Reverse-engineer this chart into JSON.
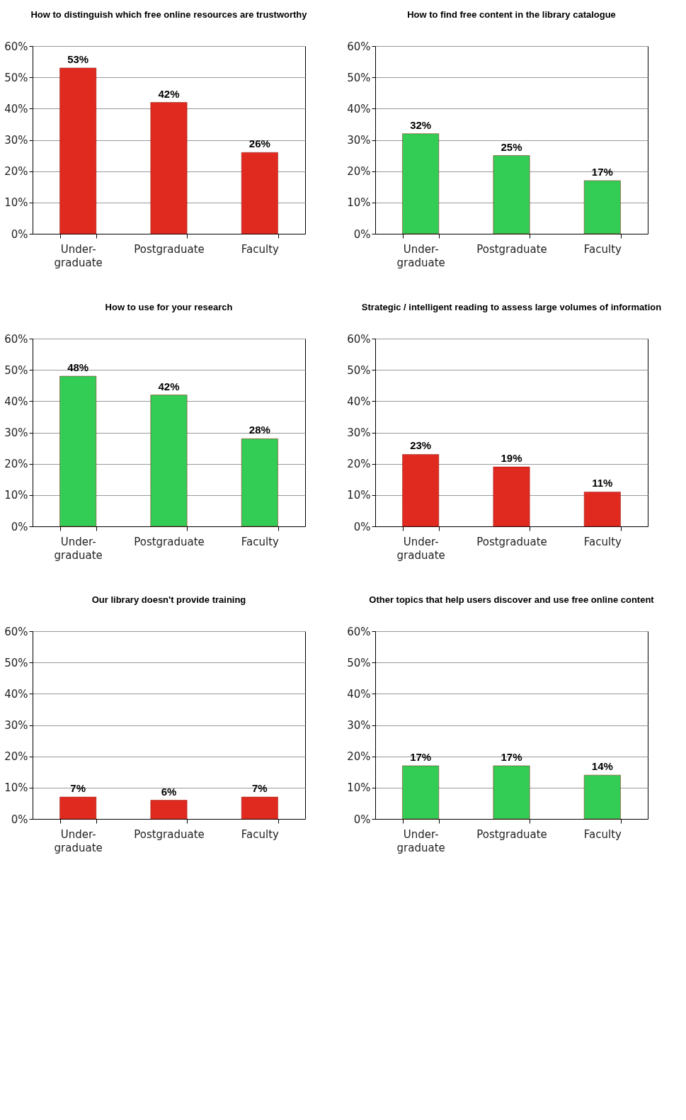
{
  "chart_data": [
    {
      "type": "bar",
      "title": "How to distinguish which free online resources are trustworthy",
      "categories": [
        "Under- graduate",
        "Postgraduate",
        "Faculty"
      ],
      "values": [
        53,
        42,
        26
      ],
      "value_labels": [
        "53%",
        "42%",
        "26%"
      ],
      "color": "#e02a20",
      "ylim": [
        0,
        60
      ],
      "yticks": [
        {
          "value": 0,
          "label": "0%"
        },
        {
          "value": 10,
          "label": "10%"
        },
        {
          "value": 20,
          "label": "20%"
        },
        {
          "value": 30,
          "label": "30%"
        },
        {
          "value": 40,
          "label": "40%"
        },
        {
          "value": 50,
          "label": "50%"
        },
        {
          "value": 60,
          "label": "60%"
        }
      ],
      "grid": "y"
    },
    {
      "type": "bar",
      "title": "How to find free content in the library catalogue",
      "categories": [
        "Under- graduate",
        "Postgraduate",
        "Faculty"
      ],
      "values": [
        32,
        25,
        17
      ],
      "value_labels": [
        "32%",
        "25%",
        "17%"
      ],
      "color": "#33cc55",
      "ylim": [
        0,
        60
      ],
      "yticks": [
        {
          "value": 0,
          "label": "0%"
        },
        {
          "value": 10,
          "label": "10%"
        },
        {
          "value": 20,
          "label": "20%"
        },
        {
          "value": 30,
          "label": "30%"
        },
        {
          "value": 40,
          "label": "40%"
        },
        {
          "value": 50,
          "label": "50%"
        },
        {
          "value": 60,
          "label": "60%"
        }
      ],
      "grid": "y"
    },
    {
      "type": "bar",
      "title": "How to use for your research",
      "categories": [
        "Under- graduate",
        "Postgraduate",
        "Faculty"
      ],
      "values": [
        48,
        42,
        28
      ],
      "value_labels": [
        "48%",
        "42%",
        "28%"
      ],
      "color": "#33cc55",
      "ylim": [
        0,
        60
      ],
      "yticks": [
        {
          "value": 0,
          "label": "0%"
        },
        {
          "value": 10,
          "label": "10%"
        },
        {
          "value": 20,
          "label": "20%"
        },
        {
          "value": 30,
          "label": "30%"
        },
        {
          "value": 40,
          "label": "40%"
        },
        {
          "value": 50,
          "label": "50%"
        },
        {
          "value": 60,
          "label": "60%"
        }
      ],
      "grid": "y"
    },
    {
      "type": "bar",
      "title": "Strategic / intelligent reading to assess large volumes of information",
      "categories": [
        "Under- graduate",
        "Postgraduate",
        "Faculty"
      ],
      "values": [
        23,
        19,
        11
      ],
      "value_labels": [
        "23%",
        "19%",
        "11%"
      ],
      "color": "#e02a20",
      "ylim": [
        0,
        60
      ],
      "yticks": [
        {
          "value": 0,
          "label": "0%"
        },
        {
          "value": 10,
          "label": "10%"
        },
        {
          "value": 20,
          "label": "20%"
        },
        {
          "value": 30,
          "label": "30%"
        },
        {
          "value": 40,
          "label": "40%"
        },
        {
          "value": 50,
          "label": "50%"
        },
        {
          "value": 60,
          "label": "60%"
        }
      ],
      "grid": "y"
    },
    {
      "type": "bar",
      "title": "Our library doesn't provide training",
      "categories": [
        "Under- graduate",
        "Postgraduate",
        "Faculty"
      ],
      "values": [
        7,
        6,
        7
      ],
      "value_labels": [
        "7%",
        "6%",
        "7%"
      ],
      "color": "#e02a20",
      "ylim": [
        0,
        60
      ],
      "yticks": [
        {
          "value": 0,
          "label": "0%"
        },
        {
          "value": 10,
          "label": "10%"
        },
        {
          "value": 20,
          "label": "20%"
        },
        {
          "value": 30,
          "label": "30%"
        },
        {
          "value": 40,
          "label": "40%"
        },
        {
          "value": 50,
          "label": "50%"
        },
        {
          "value": 60,
          "label": "60%"
        }
      ],
      "grid": "y"
    },
    {
      "type": "bar",
      "title": "Other topics that help users discover and use free online content",
      "categories": [
        "Under- graduate",
        "Postgraduate",
        "Faculty"
      ],
      "values": [
        17,
        17,
        14
      ],
      "value_labels": [
        "17%",
        "17%",
        "14%"
      ],
      "color": "#33cc55",
      "ylim": [
        0,
        60
      ],
      "yticks": [
        {
          "value": 0,
          "label": "0%"
        },
        {
          "value": 10,
          "label": "10%"
        },
        {
          "value": 20,
          "label": "20%"
        },
        {
          "value": 30,
          "label": "30%"
        },
        {
          "value": 40,
          "label": "40%"
        },
        {
          "value": 50,
          "label": "50%"
        },
        {
          "value": 60,
          "label": "60%"
        }
      ],
      "grid": "y"
    }
  ]
}
